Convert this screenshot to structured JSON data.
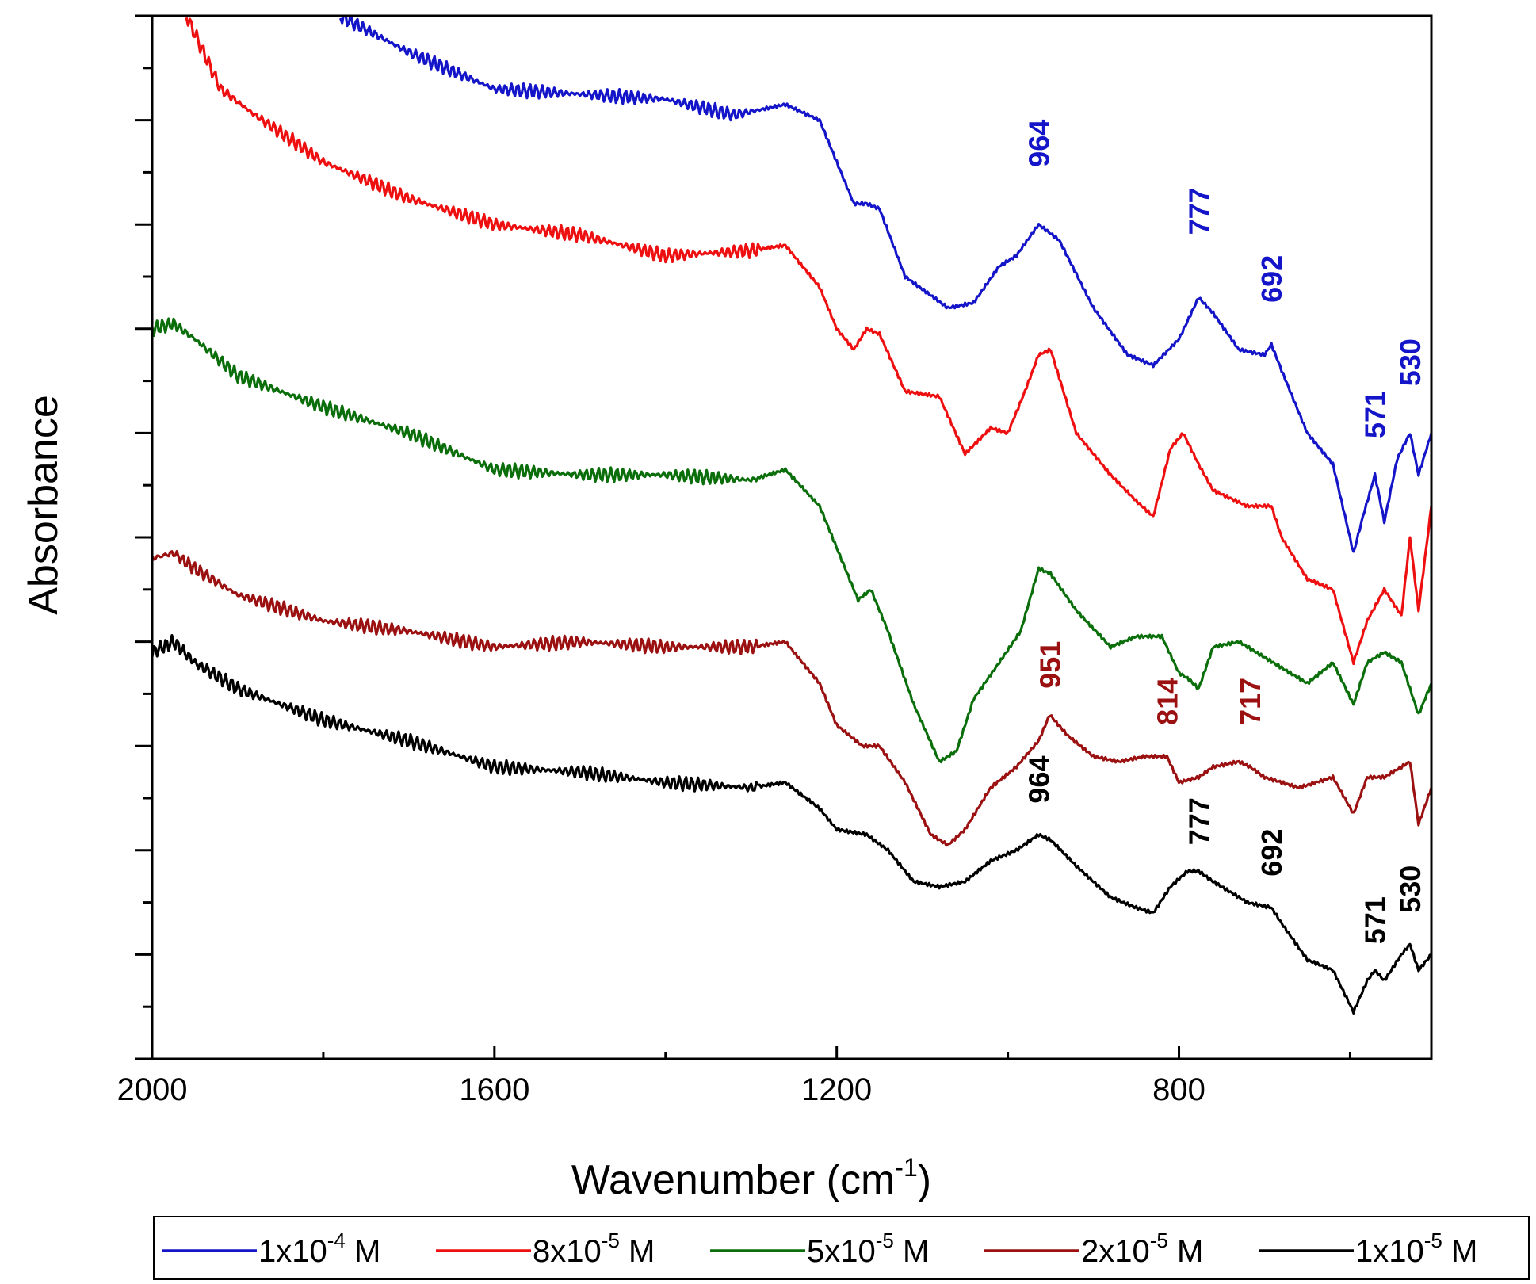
{
  "chart_data": {
    "type": "line",
    "title": "",
    "xlabel": {
      "main": "Wavenumber (cm",
      "sup": "-1",
      "close": ")"
    },
    "ylabel": "Absorbance",
    "xlim": [
      2000,
      505
    ],
    "ylim": [
      0,
      1
    ],
    "x_reversed": true,
    "y_tick_labels": false,
    "x_ticks": [
      {
        "value": 2000,
        "label": "2000"
      },
      {
        "value": 1600,
        "label": "1600"
      },
      {
        "value": 1200,
        "label": "1200"
      },
      {
        "value": 800,
        "label": "800"
      }
    ],
    "legend": {
      "position": "bottom",
      "border": true
    },
    "series": [
      {
        "name": "1x10-4 M",
        "label": {
          "base": "1x10",
          "exp": "-4",
          "unit": " M"
        },
        "color": "#1414c8",
        "points": [
          [
            1780,
            1.0
          ],
          [
            1700,
            0.965
          ],
          [
            1600,
            0.93
          ],
          [
            1500,
            0.925
          ],
          [
            1400,
            0.92
          ],
          [
            1320,
            0.905
          ],
          [
            1260,
            0.915
          ],
          [
            1220,
            0.9
          ],
          [
            1180,
            0.82
          ],
          [
            1165,
            0.82
          ],
          [
            1150,
            0.815
          ],
          [
            1120,
            0.75
          ],
          [
            1070,
            0.72
          ],
          [
            1040,
            0.725
          ],
          [
            1010,
            0.76
          ],
          [
            990,
            0.77
          ],
          [
            964,
            0.8
          ],
          [
            940,
            0.785
          ],
          [
            900,
            0.72
          ],
          [
            860,
            0.675
          ],
          [
            830,
            0.665
          ],
          [
            800,
            0.69
          ],
          [
            777,
            0.73
          ],
          [
            760,
            0.715
          ],
          [
            730,
            0.68
          ],
          [
            700,
            0.675
          ],
          [
            692,
            0.685
          ],
          [
            680,
            0.66
          ],
          [
            650,
            0.6
          ],
          [
            620,
            0.57
          ],
          [
            596,
            0.485
          ],
          [
            585,
            0.52
          ],
          [
            571,
            0.56
          ],
          [
            560,
            0.515
          ],
          [
            545,
            0.575
          ],
          [
            530,
            0.6
          ],
          [
            520,
            0.56
          ],
          [
            505,
            0.6
          ]
        ]
      },
      {
        "name": "8x10-5 M",
        "label": {
          "base": "8x10",
          "exp": "-5",
          "unit": " M"
        },
        "color": "#ee1010",
        "points": [
          [
            1960,
            1.0
          ],
          [
            1920,
            0.93
          ],
          [
            1880,
            0.905
          ],
          [
            1800,
            0.86
          ],
          [
            1700,
            0.825
          ],
          [
            1600,
            0.8
          ],
          [
            1500,
            0.79
          ],
          [
            1400,
            0.77
          ],
          [
            1300,
            0.775
          ],
          [
            1260,
            0.78
          ],
          [
            1220,
            0.74
          ],
          [
            1200,
            0.7
          ],
          [
            1180,
            0.68
          ],
          [
            1165,
            0.7
          ],
          [
            1150,
            0.695
          ],
          [
            1120,
            0.64
          ],
          [
            1080,
            0.635
          ],
          [
            1050,
            0.58
          ],
          [
            1020,
            0.605
          ],
          [
            1000,
            0.6
          ],
          [
            980,
            0.64
          ],
          [
            964,
            0.675
          ],
          [
            950,
            0.68
          ],
          [
            920,
            0.6
          ],
          [
            880,
            0.56
          ],
          [
            850,
            0.535
          ],
          [
            830,
            0.52
          ],
          [
            810,
            0.585
          ],
          [
            795,
            0.6
          ],
          [
            777,
            0.57
          ],
          [
            760,
            0.545
          ],
          [
            720,
            0.53
          ],
          [
            692,
            0.53
          ],
          [
            680,
            0.5
          ],
          [
            650,
            0.46
          ],
          [
            620,
            0.45
          ],
          [
            596,
            0.38
          ],
          [
            580,
            0.42
          ],
          [
            560,
            0.45
          ],
          [
            540,
            0.425
          ],
          [
            530,
            0.5
          ],
          [
            520,
            0.43
          ],
          [
            505,
            0.53
          ]
        ]
      },
      {
        "name": "5x10-5 M",
        "label": {
          "base": "5x10",
          "exp": "-5",
          "unit": " M"
        },
        "color": "#0a6e0a",
        "points": [
          [
            2000,
            0.7
          ],
          [
            1975,
            0.705
          ],
          [
            1950,
            0.69
          ],
          [
            1900,
            0.655
          ],
          [
            1800,
            0.625
          ],
          [
            1700,
            0.6
          ],
          [
            1600,
            0.565
          ],
          [
            1500,
            0.56
          ],
          [
            1400,
            0.56
          ],
          [
            1300,
            0.555
          ],
          [
            1260,
            0.565
          ],
          [
            1220,
            0.53
          ],
          [
            1200,
            0.49
          ],
          [
            1175,
            0.44
          ],
          [
            1160,
            0.45
          ],
          [
            1140,
            0.41
          ],
          [
            1110,
            0.34
          ],
          [
            1080,
            0.285
          ],
          [
            1060,
            0.295
          ],
          [
            1040,
            0.345
          ],
          [
            1010,
            0.38
          ],
          [
            985,
            0.41
          ],
          [
            964,
            0.47
          ],
          [
            950,
            0.465
          ],
          [
            920,
            0.43
          ],
          [
            880,
            0.395
          ],
          [
            850,
            0.405
          ],
          [
            820,
            0.405
          ],
          [
            800,
            0.37
          ],
          [
            790,
            0.365
          ],
          [
            777,
            0.355
          ],
          [
            760,
            0.395
          ],
          [
            730,
            0.4
          ],
          [
            700,
            0.385
          ],
          [
            680,
            0.375
          ],
          [
            650,
            0.36
          ],
          [
            620,
            0.38
          ],
          [
            596,
            0.34
          ],
          [
            580,
            0.38
          ],
          [
            560,
            0.39
          ],
          [
            540,
            0.38
          ],
          [
            520,
            0.33
          ],
          [
            510,
            0.35
          ],
          [
            505,
            0.36
          ]
        ]
      },
      {
        "name": "2x10-5 M",
        "label": {
          "base": "2x10",
          "exp": "-5",
          "unit": " M"
        },
        "color": "#9b1010",
        "points": [
          [
            2000,
            0.48
          ],
          [
            1975,
            0.485
          ],
          [
            1950,
            0.47
          ],
          [
            1900,
            0.445
          ],
          [
            1800,
            0.42
          ],
          [
            1700,
            0.41
          ],
          [
            1600,
            0.395
          ],
          [
            1500,
            0.4
          ],
          [
            1400,
            0.395
          ],
          [
            1300,
            0.395
          ],
          [
            1260,
            0.4
          ],
          [
            1220,
            0.36
          ],
          [
            1200,
            0.32
          ],
          [
            1170,
            0.3
          ],
          [
            1150,
            0.3
          ],
          [
            1120,
            0.265
          ],
          [
            1090,
            0.215
          ],
          [
            1070,
            0.205
          ],
          [
            1050,
            0.22
          ],
          [
            1020,
            0.26
          ],
          [
            990,
            0.28
          ],
          [
            964,
            0.305
          ],
          [
            951,
            0.33
          ],
          [
            930,
            0.31
          ],
          [
            900,
            0.29
          ],
          [
            870,
            0.285
          ],
          [
            840,
            0.29
          ],
          [
            814,
            0.29
          ],
          [
            800,
            0.265
          ],
          [
            777,
            0.27
          ],
          [
            760,
            0.28
          ],
          [
            730,
            0.285
          ],
          [
            717,
            0.28
          ],
          [
            700,
            0.27
          ],
          [
            660,
            0.26
          ],
          [
            620,
            0.27
          ],
          [
            596,
            0.235
          ],
          [
            580,
            0.27
          ],
          [
            560,
            0.27
          ],
          [
            530,
            0.285
          ],
          [
            520,
            0.225
          ],
          [
            505,
            0.26
          ]
        ]
      },
      {
        "name": "1x10-5 M",
        "label": {
          "base": "1x10",
          "exp": "-5",
          "unit": " M"
        },
        "color": "#000000",
        "points": [
          [
            2000,
            0.39
          ],
          [
            1975,
            0.4
          ],
          [
            1950,
            0.38
          ],
          [
            1900,
            0.355
          ],
          [
            1800,
            0.325
          ],
          [
            1700,
            0.305
          ],
          [
            1600,
            0.28
          ],
          [
            1500,
            0.275
          ],
          [
            1400,
            0.265
          ],
          [
            1300,
            0.26
          ],
          [
            1260,
            0.265
          ],
          [
            1220,
            0.24
          ],
          [
            1200,
            0.22
          ],
          [
            1165,
            0.215
          ],
          [
            1140,
            0.2
          ],
          [
            1110,
            0.17
          ],
          [
            1080,
            0.165
          ],
          [
            1050,
            0.17
          ],
          [
            1020,
            0.19
          ],
          [
            990,
            0.2
          ],
          [
            964,
            0.215
          ],
          [
            950,
            0.21
          ],
          [
            920,
            0.185
          ],
          [
            880,
            0.155
          ],
          [
            850,
            0.145
          ],
          [
            830,
            0.14
          ],
          [
            810,
            0.165
          ],
          [
            790,
            0.18
          ],
          [
            777,
            0.18
          ],
          [
            760,
            0.17
          ],
          [
            720,
            0.15
          ],
          [
            692,
            0.145
          ],
          [
            680,
            0.13
          ],
          [
            650,
            0.095
          ],
          [
            620,
            0.085
          ],
          [
            596,
            0.045
          ],
          [
            580,
            0.075
          ],
          [
            571,
            0.085
          ],
          [
            560,
            0.075
          ],
          [
            540,
            0.1
          ],
          [
            530,
            0.11
          ],
          [
            520,
            0.085
          ],
          [
            505,
            0.1
          ]
        ]
      }
    ],
    "annotations": [
      {
        "text": "964",
        "x": 964,
        "y": 0.855,
        "series": "1x10-4 M",
        "color": "#1414c8"
      },
      {
        "text": "777",
        "x": 777,
        "y": 0.79,
        "series": "1x10-4 M",
        "color": "#1414c8"
      },
      {
        "text": "692",
        "x": 692,
        "y": 0.725,
        "series": "1x10-4 M",
        "color": "#1414c8"
      },
      {
        "text": "571",
        "x": 571,
        "y": 0.595,
        "series": "1x10-4 M",
        "color": "#1414c8"
      },
      {
        "text": "530",
        "x": 530,
        "y": 0.645,
        "series": "1x10-4 M",
        "color": "#1414c8"
      },
      {
        "text": "951",
        "x": 951,
        "y": 0.355,
        "series": "2x10-5 M",
        "color": "#9b1010"
      },
      {
        "text": "814",
        "x": 814,
        "y": 0.32,
        "series": "2x10-5 M",
        "color": "#9b1010"
      },
      {
        "text": "717",
        "x": 717,
        "y": 0.32,
        "series": "2x10-5 M",
        "color": "#9b1010"
      },
      {
        "text": "964",
        "x": 964,
        "y": 0.245,
        "series": "1x10-5 M",
        "color": "#000000"
      },
      {
        "text": "777",
        "x": 777,
        "y": 0.205,
        "series": "1x10-5 M",
        "color": "#000000"
      },
      {
        "text": "692",
        "x": 692,
        "y": 0.175,
        "series": "1x10-5 M",
        "color": "#000000"
      },
      {
        "text": "571",
        "x": 571,
        "y": 0.11,
        "series": "1x10-5 M",
        "color": "#000000"
      },
      {
        "text": "530",
        "x": 530,
        "y": 0.14,
        "series": "1x10-5 M",
        "color": "#000000"
      }
    ]
  }
}
